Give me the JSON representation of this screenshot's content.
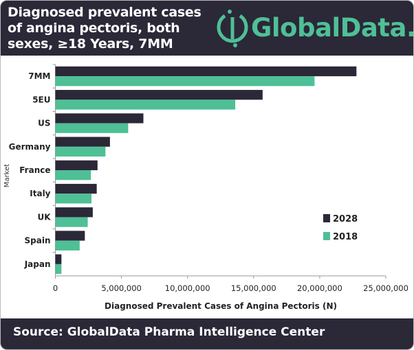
{
  "header": {
    "title": "Diagnosed prevalent cases of angina pectoris, both sexes, ≥18 Years, 7MM",
    "logo_text": "GlobalData."
  },
  "footer": {
    "source": "Source: GlobalData Pharma Intelligence Center"
  },
  "colors": {
    "dark": "#2b2838",
    "teal": "#4fbf96"
  },
  "chart_data": {
    "type": "bar",
    "orientation": "horizontal",
    "title": "Diagnosed prevalent cases of angina pectoris, both sexes, ≥18 Years, 7MM",
    "xlabel": "Diagnosed Prevalent Cases of Angina Pectoris (N)",
    "ylabel": "Market",
    "xlim": [
      0,
      25000000
    ],
    "xticks": [
      "0",
      "5,000,000",
      "10,000,000",
      "15,000,000",
      "20,000,000",
      "25,000,000"
    ],
    "categories": [
      "7MM",
      "5EU",
      "US",
      "Germany",
      "France",
      "Italy",
      "UK",
      "Spain",
      "Japan"
    ],
    "series": [
      {
        "name": "2028",
        "color": "#2b2838",
        "values": [
          22780000,
          15680000,
          6660000,
          4130000,
          3190000,
          3130000,
          2830000,
          2230000,
          460000
        ]
      },
      {
        "name": "2018",
        "color": "#4fbf96",
        "values": [
          19610000,
          13610000,
          5510000,
          3790000,
          2690000,
          2730000,
          2450000,
          1840000,
          460000
        ]
      }
    ],
    "legend": "right",
    "grid": false
  }
}
